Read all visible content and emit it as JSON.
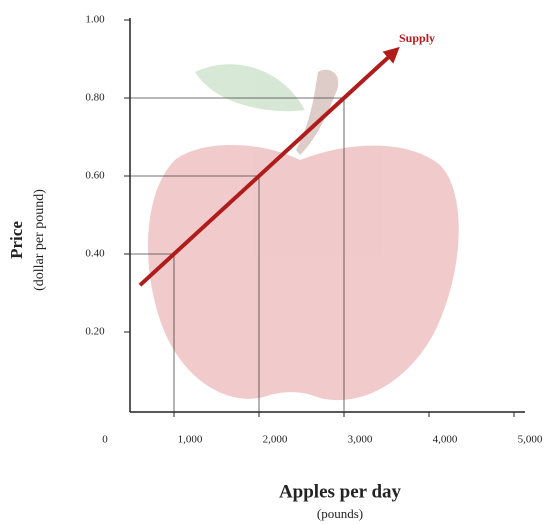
{
  "chart_data": {
    "type": "line",
    "y_title": "Price",
    "y_subtitle": "(dollar per pound)",
    "x_title": "Apples per day",
    "x_subtitle": "(pounds)",
    "series": [
      {
        "name": "Supply",
        "color": "#b01c1c",
        "x": [
          600,
          3600
        ],
        "values": [
          0.32,
          0.92
        ]
      }
    ],
    "guides": {
      "color": "#444",
      "x": [
        1000,
        2000,
        3000
      ],
      "values": [
        0.4,
        0.6,
        0.8
      ]
    },
    "xlim": [
      0,
      5000
    ],
    "xticks": [
      0,
      {
        "value": 1000,
        "label": "1,000"
      },
      {
        "value": 2000,
        "label": "2,000"
      },
      {
        "value": 3000,
        "label": "3,000"
      },
      {
        "value": 4000,
        "label": "4,000"
      },
      {
        "value": 5000,
        "label": "5,000"
      }
    ],
    "ylim": [
      0,
      1
    ],
    "yticks": [
      {
        "value": 0.2,
        "label": "0.20"
      },
      {
        "value": 0.4,
        "label": "0.40"
      },
      {
        "value": 0.6,
        "label": "0.60"
      },
      {
        "value": 0.8,
        "label": "0.80"
      },
      {
        "value": 1,
        "label": "1.00"
      }
    ]
  }
}
